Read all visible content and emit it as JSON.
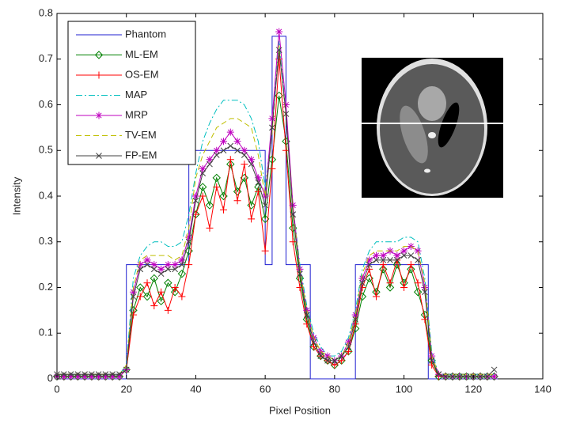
{
  "chart_data": {
    "type": "line",
    "x_label": "Pixel Position",
    "y_label": "Intensity",
    "xlim": [
      0,
      140
    ],
    "xticks": [
      0,
      20,
      40,
      60,
      80,
      100,
      120,
      140
    ],
    "ylim": [
      0,
      0.8
    ],
    "yticks": [
      0,
      0.1,
      0.2,
      0.3,
      0.4,
      0.5,
      0.6,
      0.7,
      0.8
    ],
    "legend": "northwest",
    "x": [
      0,
      2,
      4,
      6,
      8,
      10,
      12,
      14,
      16,
      18,
      20,
      22,
      24,
      26,
      28,
      30,
      32,
      34,
      36,
      38,
      40,
      42,
      44,
      46,
      48,
      50,
      52,
      54,
      56,
      58,
      60,
      62,
      64,
      66,
      68,
      70,
      72,
      74,
      76,
      78,
      80,
      82,
      84,
      86,
      88,
      90,
      92,
      94,
      96,
      98,
      100,
      102,
      104,
      106,
      108,
      110,
      112,
      114,
      116,
      118,
      120,
      122,
      124,
      126
    ],
    "series": [
      {
        "name": "Phantom",
        "color": "#1f1fd0",
        "dash": "solid",
        "marker": "none",
        "x": [
          0,
          20,
          20,
          38,
          38,
          60,
          60,
          62,
          62,
          66,
          66,
          73,
          73,
          86,
          86,
          107,
          107,
          127
        ],
        "values": [
          0,
          0,
          0.25,
          0.25,
          0.5,
          0.5,
          0.25,
          0.25,
          0.75,
          0.75,
          0.25,
          0.25,
          0,
          0,
          0.25,
          0.25,
          0,
          0
        ]
      },
      {
        "name": "ML-EM",
        "color": "#008000",
        "dash": "solid",
        "marker": "diamond",
        "values": [
          0.005,
          0.005,
          0.005,
          0.005,
          0.005,
          0.005,
          0.005,
          0.005,
          0.005,
          0.005,
          0.02,
          0.15,
          0.2,
          0.18,
          0.22,
          0.17,
          0.21,
          0.19,
          0.23,
          0.28,
          0.36,
          0.42,
          0.38,
          0.44,
          0.4,
          0.47,
          0.41,
          0.44,
          0.38,
          0.42,
          0.35,
          0.48,
          0.62,
          0.52,
          0.33,
          0.22,
          0.13,
          0.07,
          0.05,
          0.04,
          0.03,
          0.04,
          0.06,
          0.11,
          0.18,
          0.22,
          0.19,
          0.24,
          0.2,
          0.25,
          0.21,
          0.24,
          0.19,
          0.14,
          0.04,
          0.005,
          0.005,
          0.005,
          0.005,
          0.005,
          0.005,
          0.005,
          0.005,
          0.005
        ]
      },
      {
        "name": "OS-EM",
        "color": "#ff0000",
        "dash": "solid",
        "marker": "plus",
        "values": [
          0.005,
          0.005,
          0.005,
          0.005,
          0.005,
          0.005,
          0.005,
          0.005,
          0.005,
          0.005,
          0.02,
          0.14,
          0.18,
          0.21,
          0.16,
          0.19,
          0.15,
          0.2,
          0.18,
          0.25,
          0.36,
          0.4,
          0.33,
          0.42,
          0.37,
          0.48,
          0.39,
          0.47,
          0.35,
          0.41,
          0.28,
          0.46,
          0.7,
          0.5,
          0.3,
          0.2,
          0.12,
          0.07,
          0.05,
          0.04,
          0.03,
          0.04,
          0.06,
          0.12,
          0.2,
          0.24,
          0.18,
          0.25,
          0.21,
          0.26,
          0.2,
          0.25,
          0.21,
          0.13,
          0.03,
          0.005,
          0.005,
          0.005,
          0.005,
          0.005,
          0.005,
          0.005,
          0.005,
          0.005
        ]
      },
      {
        "name": "MAP",
        "color": "#00bfbf",
        "dash": "dashdot",
        "marker": "none",
        "values": [
          0.01,
          0.01,
          0.01,
          0.01,
          0.01,
          0.01,
          0.01,
          0.01,
          0.01,
          0.01,
          0.03,
          0.22,
          0.27,
          0.29,
          0.3,
          0.3,
          0.29,
          0.29,
          0.3,
          0.36,
          0.45,
          0.52,
          0.56,
          0.59,
          0.61,
          0.61,
          0.61,
          0.6,
          0.57,
          0.52,
          0.42,
          0.55,
          0.74,
          0.58,
          0.38,
          0.25,
          0.16,
          0.1,
          0.07,
          0.05,
          0.05,
          0.06,
          0.09,
          0.15,
          0.24,
          0.28,
          0.3,
          0.3,
          0.3,
          0.3,
          0.31,
          0.31,
          0.3,
          0.22,
          0.06,
          0.01,
          0.01,
          0.01,
          0.01,
          0.01,
          0.01,
          0.01,
          0.01,
          0.01
        ]
      },
      {
        "name": "MRP",
        "color": "#bf00bf",
        "dash": "solid",
        "marker": "star",
        "values": [
          0.005,
          0.005,
          0.005,
          0.005,
          0.005,
          0.005,
          0.005,
          0.005,
          0.005,
          0.005,
          0.02,
          0.19,
          0.25,
          0.26,
          0.25,
          0.24,
          0.25,
          0.25,
          0.26,
          0.31,
          0.4,
          0.46,
          0.48,
          0.5,
          0.52,
          0.54,
          0.52,
          0.5,
          0.48,
          0.44,
          0.4,
          0.57,
          0.76,
          0.6,
          0.38,
          0.24,
          0.15,
          0.09,
          0.06,
          0.05,
          0.04,
          0.05,
          0.08,
          0.14,
          0.22,
          0.26,
          0.27,
          0.27,
          0.28,
          0.27,
          0.28,
          0.29,
          0.28,
          0.2,
          0.05,
          0.01,
          0.005,
          0.005,
          0.005,
          0.005,
          0.005,
          0.005,
          0.005,
          0.005
        ]
      },
      {
        "name": "TV-EM",
        "color": "#bfbf00",
        "dash": "dashed",
        "marker": "none",
        "values": [
          0.01,
          0.01,
          0.01,
          0.01,
          0.01,
          0.01,
          0.01,
          0.01,
          0.01,
          0.01,
          0.03,
          0.2,
          0.26,
          0.27,
          0.27,
          0.27,
          0.27,
          0.26,
          0.27,
          0.33,
          0.44,
          0.49,
          0.52,
          0.55,
          0.56,
          0.57,
          0.57,
          0.56,
          0.55,
          0.49,
          0.4,
          0.54,
          0.73,
          0.57,
          0.37,
          0.24,
          0.15,
          0.09,
          0.06,
          0.05,
          0.04,
          0.05,
          0.08,
          0.14,
          0.23,
          0.27,
          0.28,
          0.28,
          0.28,
          0.28,
          0.29,
          0.29,
          0.28,
          0.21,
          0.05,
          0.01,
          0.01,
          0.01,
          0.01,
          0.01,
          0.01,
          0.01,
          0.01,
          0.01
        ]
      },
      {
        "name": "FP-EM",
        "color": "#404040",
        "dash": "solid",
        "marker": "x",
        "values": [
          0.01,
          0.01,
          0.01,
          0.01,
          0.01,
          0.01,
          0.01,
          0.01,
          0.01,
          0.01,
          0.02,
          0.18,
          0.24,
          0.25,
          0.24,
          0.23,
          0.24,
          0.24,
          0.25,
          0.3,
          0.39,
          0.45,
          0.47,
          0.49,
          0.5,
          0.51,
          0.5,
          0.49,
          0.47,
          0.43,
          0.38,
          0.55,
          0.72,
          0.58,
          0.36,
          0.23,
          0.14,
          0.08,
          0.05,
          0.04,
          0.04,
          0.05,
          0.07,
          0.13,
          0.21,
          0.25,
          0.26,
          0.26,
          0.26,
          0.26,
          0.27,
          0.27,
          0.26,
          0.19,
          0.04,
          0.01,
          0.005,
          0.005,
          0.005,
          0.005,
          0.005,
          0.005,
          0.005,
          0.02
        ]
      }
    ]
  }
}
